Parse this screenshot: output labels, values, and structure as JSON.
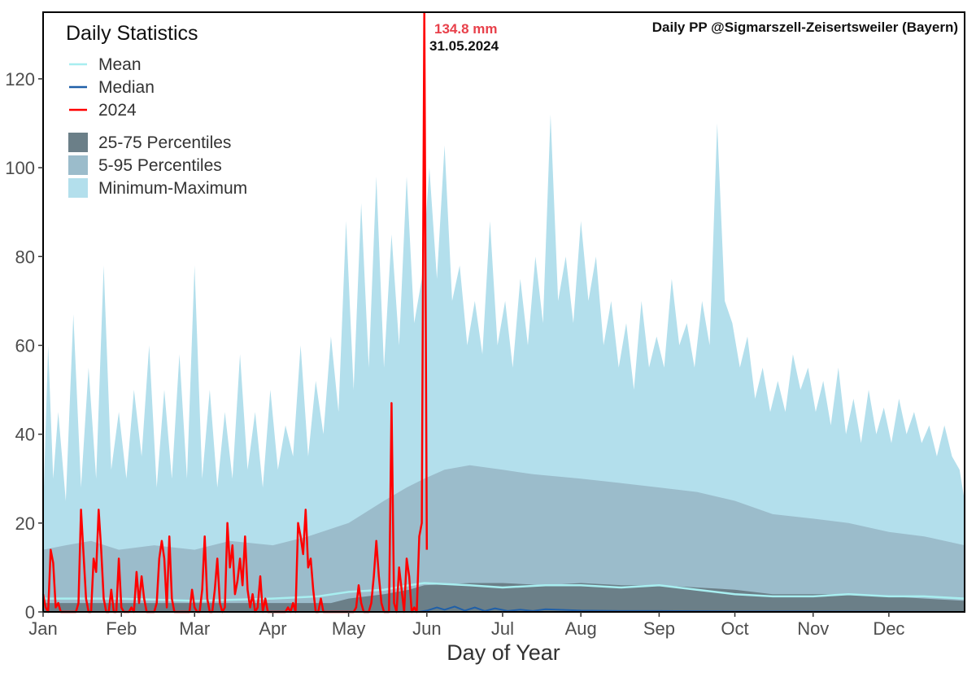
{
  "chart_data": {
    "type": "area",
    "title": "Daily PP @Sigmarszell-Zeisertsweiler (Bayern)",
    "xlabel": "Day of Year",
    "ylabel": "",
    "xlim": [
      1,
      366
    ],
    "ylim": [
      0,
      135
    ],
    "yticks": [
      0,
      20,
      40,
      60,
      80,
      100,
      120
    ],
    "month_ticks": [
      {
        "label": "Jan",
        "day": 1
      },
      {
        "label": "Feb",
        "day": 32
      },
      {
        "label": "Mar",
        "day": 61
      },
      {
        "label": "Apr",
        "day": 92
      },
      {
        "label": "May",
        "day": 122
      },
      {
        "label": "Jun",
        "day": 153
      },
      {
        "label": "Jul",
        "day": 183
      },
      {
        "label": "Aug",
        "day": 214
      },
      {
        "label": "Sep",
        "day": 245
      },
      {
        "label": "Oct",
        "day": 275
      },
      {
        "label": "Nov",
        "day": 306
      },
      {
        "label": "Dec",
        "day": 336
      }
    ],
    "grid": false,
    "legend": {
      "title": "Daily Statistics",
      "position": "top-left",
      "lines": [
        {
          "label": "Mean",
          "color": "#a8eef0"
        },
        {
          "label": "Median",
          "color": "#1f5fa8"
        },
        {
          "label": "2024",
          "color": "#ff0000"
        }
      ],
      "bands": [
        {
          "label": "25-75 Percentiles",
          "color": "#6b7f88"
        },
        {
          "label": "5-95 Percentiles",
          "color": "#9bbccb"
        },
        {
          "label": "Minimum-Maximum",
          "color": "#b3dfec"
        }
      ]
    },
    "annotation": {
      "value_label": "134.8 mm",
      "date_label": "31.05.2024",
      "day": 152,
      "value": 134.8
    },
    "series": {
      "max": [
        [
          1,
          22
        ],
        [
          3,
          60
        ],
        [
          5,
          30
        ],
        [
          7,
          45
        ],
        [
          10,
          25
        ],
        [
          13,
          67
        ],
        [
          16,
          28
        ],
        [
          19,
          55
        ],
        [
          22,
          30
        ],
        [
          25,
          78
        ],
        [
          28,
          32
        ],
        [
          31,
          45
        ],
        [
          34,
          30
        ],
        [
          37,
          50
        ],
        [
          40,
          35
        ],
        [
          43,
          60
        ],
        [
          46,
          28
        ],
        [
          49,
          50
        ],
        [
          52,
          30
        ],
        [
          55,
          58
        ],
        [
          58,
          30
        ],
        [
          61,
          78
        ],
        [
          64,
          30
        ],
        [
          67,
          50
        ],
        [
          70,
          28
        ],
        [
          73,
          45
        ],
        [
          76,
          30
        ],
        [
          79,
          58
        ],
        [
          82,
          32
        ],
        [
          85,
          45
        ],
        [
          88,
          28
        ],
        [
          91,
          50
        ],
        [
          94,
          32
        ],
        [
          97,
          42
        ],
        [
          100,
          35
        ],
        [
          103,
          60
        ],
        [
          106,
          35
        ],
        [
          109,
          52
        ],
        [
          112,
          40
        ],
        [
          115,
          62
        ],
        [
          118,
          45
        ],
        [
          121,
          88
        ],
        [
          124,
          50
        ],
        [
          127,
          92
        ],
        [
          130,
          55
        ],
        [
          133,
          98
        ],
        [
          136,
          55
        ],
        [
          139,
          85
        ],
        [
          142,
          60
        ],
        [
          145,
          98
        ],
        [
          148,
          65
        ],
        [
          151,
          75
        ],
        [
          154,
          100
        ],
        [
          157,
          75
        ],
        [
          160,
          105
        ],
        [
          163,
          70
        ],
        [
          166,
          78
        ],
        [
          169,
          60
        ],
        [
          172,
          70
        ],
        [
          175,
          58
        ],
        [
          178,
          88
        ],
        [
          181,
          60
        ],
        [
          184,
          70
        ],
        [
          187,
          55
        ],
        [
          190,
          75
        ],
        [
          193,
          60
        ],
        [
          196,
          80
        ],
        [
          199,
          65
        ],
        [
          202,
          112
        ],
        [
          205,
          70
        ],
        [
          208,
          80
        ],
        [
          211,
          65
        ],
        [
          214,
          88
        ],
        [
          217,
          70
        ],
        [
          220,
          80
        ],
        [
          223,
          60
        ],
        [
          226,
          70
        ],
        [
          229,
          55
        ],
        [
          232,
          65
        ],
        [
          235,
          50
        ],
        [
          238,
          70
        ],
        [
          241,
          55
        ],
        [
          244,
          62
        ],
        [
          247,
          55
        ],
        [
          250,
          75
        ],
        [
          253,
          60
        ],
        [
          256,
          65
        ],
        [
          259,
          55
        ],
        [
          262,
          70
        ],
        [
          265,
          60
        ],
        [
          268,
          110
        ],
        [
          271,
          70
        ],
        [
          274,
          65
        ],
        [
          277,
          55
        ],
        [
          280,
          62
        ],
        [
          283,
          48
        ],
        [
          286,
          55
        ],
        [
          289,
          45
        ],
        [
          292,
          52
        ],
        [
          295,
          45
        ],
        [
          298,
          58
        ],
        [
          301,
          50
        ],
        [
          304,
          55
        ],
        [
          307,
          45
        ],
        [
          310,
          52
        ],
        [
          313,
          42
        ],
        [
          316,
          55
        ],
        [
          319,
          40
        ],
        [
          322,
          48
        ],
        [
          325,
          38
        ],
        [
          328,
          50
        ],
        [
          331,
          40
        ],
        [
          334,
          46
        ],
        [
          337,
          38
        ],
        [
          340,
          48
        ],
        [
          343,
          40
        ],
        [
          346,
          45
        ],
        [
          349,
          38
        ],
        [
          352,
          42
        ],
        [
          355,
          35
        ],
        [
          358,
          42
        ],
        [
          361,
          35
        ],
        [
          364,
          32
        ],
        [
          366,
          25
        ]
      ],
      "p95": [
        [
          1,
          14
        ],
        [
          10,
          15
        ],
        [
          20,
          16
        ],
        [
          31,
          14
        ],
        [
          45,
          15
        ],
        [
          61,
          14
        ],
        [
          75,
          16
        ],
        [
          92,
          15
        ],
        [
          106,
          17
        ],
        [
          122,
          20
        ],
        [
          136,
          25
        ],
        [
          145,
          28
        ],
        [
          152,
          30
        ],
        [
          160,
          32
        ],
        [
          170,
          33
        ],
        [
          183,
          32
        ],
        [
          195,
          31
        ],
        [
          214,
          30
        ],
        [
          230,
          29
        ],
        [
          245,
          28
        ],
        [
          260,
          27
        ],
        [
          275,
          25
        ],
        [
          290,
          22
        ],
        [
          306,
          21
        ],
        [
          320,
          20
        ],
        [
          336,
          18
        ],
        [
          350,
          17
        ],
        [
          366,
          15
        ]
      ],
      "p75": [
        [
          1,
          2
        ],
        [
          31,
          2
        ],
        [
          61,
          2
        ],
        [
          92,
          2
        ],
        [
          115,
          2
        ],
        [
          122,
          3
        ],
        [
          136,
          4
        ],
        [
          146,
          5
        ],
        [
          152,
          6
        ],
        [
          170,
          6.5
        ],
        [
          183,
          6.5
        ],
        [
          200,
          6
        ],
        [
          214,
          6.5
        ],
        [
          230,
          6
        ],
        [
          245,
          6
        ],
        [
          260,
          5.5
        ],
        [
          275,
          5
        ],
        [
          290,
          4
        ],
        [
          306,
          4
        ],
        [
          320,
          4
        ],
        [
          336,
          3.5
        ],
        [
          350,
          3
        ],
        [
          366,
          2.5
        ]
      ],
      "mean": [
        [
          1,
          3
        ],
        [
          31,
          3
        ],
        [
          61,
          2.5
        ],
        [
          92,
          3
        ],
        [
          110,
          3.5
        ],
        [
          122,
          4.5
        ],
        [
          136,
          5
        ],
        [
          146,
          6
        ],
        [
          152,
          6.5
        ],
        [
          170,
          6
        ],
        [
          183,
          5.5
        ],
        [
          200,
          6
        ],
        [
          214,
          6
        ],
        [
          230,
          5.5
        ],
        [
          245,
          6
        ],
        [
          260,
          5
        ],
        [
          275,
          4
        ],
        [
          290,
          3.5
        ],
        [
          306,
          3.5
        ],
        [
          320,
          4
        ],
        [
          336,
          3.5
        ],
        [
          350,
          3.5
        ],
        [
          366,
          3
        ]
      ],
      "median": [
        [
          1,
          0
        ],
        [
          150,
          0
        ],
        [
          153,
          0.3
        ],
        [
          157,
          1
        ],
        [
          160,
          0.5
        ],
        [
          164,
          1.2
        ],
        [
          168,
          0.3
        ],
        [
          172,
          1
        ],
        [
          176,
          0.2
        ],
        [
          180,
          0.8
        ],
        [
          185,
          0.2
        ],
        [
          190,
          0.5
        ],
        [
          195,
          0.2
        ],
        [
          200,
          0.6
        ],
        [
          214,
          0.3
        ],
        [
          230,
          0.2
        ],
        [
          245,
          0.2
        ],
        [
          275,
          0.1
        ],
        [
          300,
          0.1
        ],
        [
          366,
          0
        ]
      ],
      "year_2024": [
        [
          1,
          4
        ],
        [
          2,
          1
        ],
        [
          3,
          0
        ],
        [
          4,
          14
        ],
        [
          5,
          11
        ],
        [
          6,
          1
        ],
        [
          7,
          2
        ],
        [
          8,
          0
        ],
        [
          9,
          0
        ],
        [
          10,
          0
        ],
        [
          11,
          0
        ],
        [
          12,
          0
        ],
        [
          13,
          0
        ],
        [
          14,
          0
        ],
        [
          15,
          2
        ],
        [
          16,
          23
        ],
        [
          17,
          13
        ],
        [
          18,
          3
        ],
        [
          19,
          0
        ],
        [
          20,
          0
        ],
        [
          21,
          12
        ],
        [
          22,
          9
        ],
        [
          23,
          23
        ],
        [
          24,
          14
        ],
        [
          25,
          3
        ],
        [
          26,
          0
        ],
        [
          27,
          0
        ],
        [
          28,
          5
        ],
        [
          29,
          0
        ],
        [
          30,
          0
        ],
        [
          31,
          12
        ],
        [
          32,
          1
        ],
        [
          33,
          0
        ],
        [
          34,
          0
        ],
        [
          35,
          0
        ],
        [
          36,
          1
        ],
        [
          37,
          0
        ],
        [
          38,
          9
        ],
        [
          39,
          2
        ],
        [
          40,
          8
        ],
        [
          41,
          3
        ],
        [
          42,
          0
        ],
        [
          43,
          0
        ],
        [
          44,
          0
        ],
        [
          45,
          0
        ],
        [
          46,
          2
        ],
        [
          47,
          12
        ],
        [
          48,
          16
        ],
        [
          49,
          12
        ],
        [
          50,
          1
        ],
        [
          51,
          17
        ],
        [
          52,
          3
        ],
        [
          53,
          0
        ],
        [
          54,
          0
        ],
        [
          55,
          0
        ],
        [
          56,
          0
        ],
        [
          57,
          0
        ],
        [
          58,
          0
        ],
        [
          59,
          0
        ],
        [
          60,
          5
        ],
        [
          61,
          1
        ],
        [
          62,
          0
        ],
        [
          63,
          0
        ],
        [
          64,
          5
        ],
        [
          65,
          17
        ],
        [
          66,
          3
        ],
        [
          67,
          0
        ],
        [
          68,
          0
        ],
        [
          69,
          5
        ],
        [
          70,
          12
        ],
        [
          71,
          2
        ],
        [
          72,
          0
        ],
        [
          73,
          1
        ],
        [
          74,
          20
        ],
        [
          75,
          10
        ],
        [
          76,
          15
        ],
        [
          77,
          4
        ],
        [
          78,
          7
        ],
        [
          79,
          12
        ],
        [
          80,
          6
        ],
        [
          81,
          17
        ],
        [
          82,
          5
        ],
        [
          83,
          1
        ],
        [
          84,
          4
        ],
        [
          85,
          0
        ],
        [
          86,
          1
        ],
        [
          87,
          8
        ],
        [
          88,
          0
        ],
        [
          89,
          3
        ],
        [
          90,
          0
        ],
        [
          91,
          0
        ],
        [
          92,
          0
        ],
        [
          93,
          0
        ],
        [
          94,
          0
        ],
        [
          95,
          0
        ],
        [
          96,
          0
        ],
        [
          97,
          0
        ],
        [
          98,
          1
        ],
        [
          99,
          0
        ],
        [
          100,
          2
        ],
        [
          101,
          0
        ],
        [
          102,
          20
        ],
        [
          103,
          17
        ],
        [
          104,
          13
        ],
        [
          105,
          23
        ],
        [
          106,
          10
        ],
        [
          107,
          12
        ],
        [
          108,
          5
        ],
        [
          109,
          0
        ],
        [
          110,
          0
        ],
        [
          111,
          3
        ],
        [
          112,
          0
        ],
        [
          113,
          0
        ],
        [
          114,
          0
        ],
        [
          115,
          0
        ],
        [
          116,
          0
        ],
        [
          117,
          0
        ],
        [
          118,
          0
        ],
        [
          119,
          0
        ],
        [
          120,
          0
        ],
        [
          121,
          0
        ],
        [
          122,
          0
        ],
        [
          123,
          0
        ],
        [
          124,
          0
        ],
        [
          125,
          1
        ],
        [
          126,
          6
        ],
        [
          127,
          2
        ],
        [
          128,
          0
        ],
        [
          129,
          0
        ],
        [
          130,
          0
        ],
        [
          131,
          2
        ],
        [
          132,
          8
        ],
        [
          133,
          16
        ],
        [
          134,
          8
        ],
        [
          135,
          2
        ],
        [
          136,
          0
        ],
        [
          137,
          0
        ],
        [
          138,
          0
        ],
        [
          139,
          47
        ],
        [
          140,
          2
        ],
        [
          141,
          0
        ],
        [
          142,
          10
        ],
        [
          143,
          5
        ],
        [
          144,
          0
        ],
        [
          145,
          12
        ],
        [
          146,
          8
        ],
        [
          147,
          0
        ],
        [
          148,
          1
        ],
        [
          149,
          0
        ],
        [
          150,
          17
        ],
        [
          151,
          20
        ],
        [
          152,
          134.8
        ],
        [
          153,
          14
        ]
      ]
    }
  }
}
